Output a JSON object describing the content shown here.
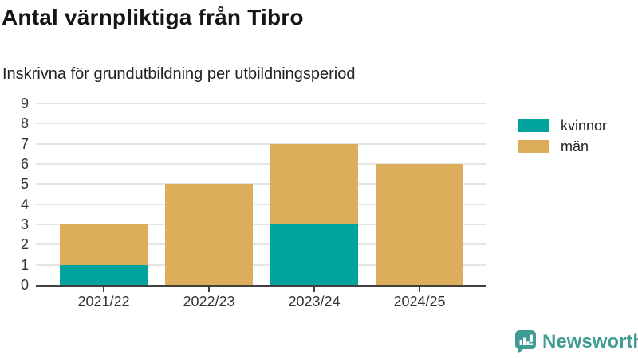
{
  "title": "Antal värnpliktiga från Tibro",
  "subtitle": "Inskrivna för grundutbildning per utbildningsperiod",
  "chart_data": {
    "type": "bar",
    "stacked": true,
    "title": "Antal värnpliktiga från Tibro",
    "subtitle": "Inskrivna för grundutbildning per utbildningsperiod",
    "categories": [
      "2021/22",
      "2022/23",
      "2023/24",
      "2024/25"
    ],
    "series": [
      {
        "name": "kvinnor",
        "color": "#00a49c",
        "values": [
          1,
          0,
          3,
          0
        ]
      },
      {
        "name": "män",
        "color": "#dcae5c",
        "values": [
          2,
          5,
          4,
          6
        ]
      }
    ],
    "totals": [
      3,
      5,
      7,
      6
    ],
    "xlabel": "",
    "ylabel": "",
    "ylim": [
      0,
      9
    ],
    "yticks": [
      0,
      1,
      2,
      3,
      4,
      5,
      6,
      7,
      8,
      9
    ],
    "grid": true,
    "grid_color": "#e4e4e4",
    "axis_color": "#404040",
    "legend_position": "right"
  },
  "branding": {
    "logo_text": "Newsworthy",
    "logo_color": "#3f9b93"
  }
}
